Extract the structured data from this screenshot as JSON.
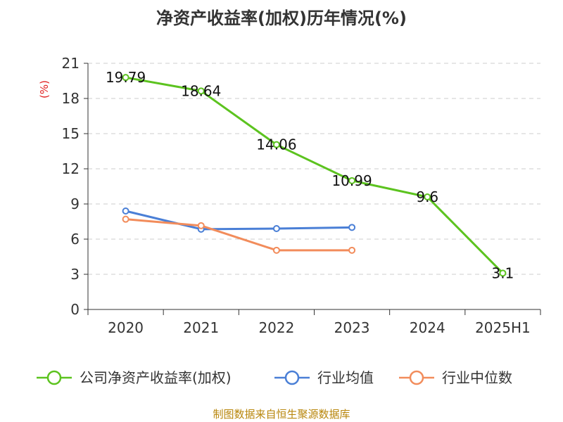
{
  "chart_data": {
    "type": "line",
    "title": "净资产收益率(加权)历年情况(%)",
    "ylabel": "(%)",
    "xlabel": "",
    "categories": [
      "2020",
      "2021",
      "2022",
      "2023",
      "2024",
      "2025H1"
    ],
    "yticks": [
      0,
      3,
      6,
      9,
      12,
      15,
      18,
      21
    ],
    "ylim": [
      0,
      21
    ],
    "grid": true,
    "legend_position": "bottom",
    "series": [
      {
        "name": "公司净资产收益率(加权)",
        "color": "#5cc31f",
        "show_labels": true,
        "labels": [
          "19.79",
          "18.64",
          "14.06",
          "10.99",
          "9.6",
          "3.1"
        ],
        "values": [
          19.79,
          18.64,
          14.06,
          10.99,
          9.6,
          3.1
        ]
      },
      {
        "name": "行业均值",
        "color": "#4a7fd6",
        "show_labels": false,
        "values": [
          8.4,
          6.85,
          6.9,
          7.0,
          null,
          null
        ]
      },
      {
        "name": "行业中位数",
        "color": "#f28c5b",
        "show_labels": false,
        "values": [
          7.7,
          7.15,
          5.05,
          5.05,
          null,
          null
        ]
      }
    ]
  },
  "footer": {
    "source": "制图数据来自恒生聚源数据库"
  }
}
